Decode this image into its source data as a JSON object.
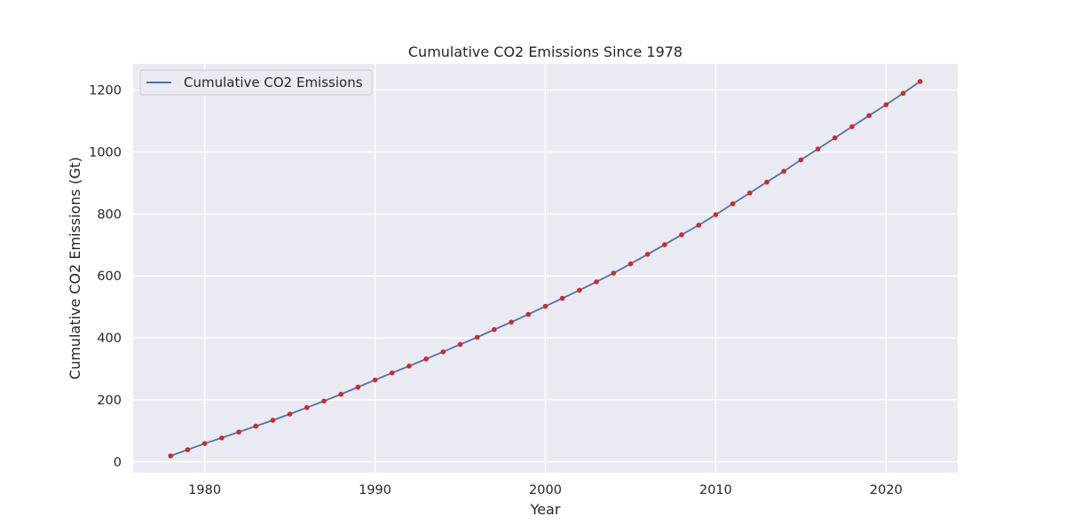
{
  "chart_data": {
    "type": "line",
    "title": "Cumulative CO2 Emissions Since 1978",
    "xlabel": "Year",
    "ylabel": "Cumulative CO2 Emissions (Gt)",
    "xlim": [
      1975.8,
      2024.2
    ],
    "ylim": [
      -35,
      1285
    ],
    "xticks": [
      1980,
      1990,
      2000,
      2010,
      2020
    ],
    "yticks": [
      0,
      200,
      400,
      600,
      800,
      1000,
      1200
    ],
    "grid": true,
    "legend": {
      "position": "top-left",
      "entries": [
        "Cumulative CO2 Emissions"
      ]
    },
    "x": [
      1978,
      1979,
      1980,
      1981,
      1982,
      1983,
      1984,
      1985,
      1986,
      1987,
      1988,
      1989,
      1990,
      1991,
      1992,
      1993,
      1994,
      1995,
      1996,
      1997,
      1998,
      1999,
      2000,
      2001,
      2002,
      2003,
      2004,
      2005,
      2006,
      2007,
      2008,
      2009,
      2010,
      2011,
      2012,
      2013,
      2014,
      2015,
      2016,
      2017,
      2018,
      2019,
      2020,
      2021,
      2022
    ],
    "series": [
      {
        "name": "Cumulative CO2 Emissions",
        "color": "#4c72b0",
        "marker_color": "#d62728",
        "values": [
          19,
          39,
          59,
          77,
          96,
          115,
          134,
          154,
          175,
          196,
          218,
          241,
          264,
          287,
          309,
          332,
          355,
          379,
          402,
          427,
          451,
          476,
          502,
          528,
          554,
          581,
          609,
          639,
          670,
          701,
          733,
          764,
          798,
          833,
          868,
          903,
          938,
          975,
          1010,
          1046,
          1082,
          1118,
          1153,
          1190,
          1228
        ]
      }
    ]
  }
}
